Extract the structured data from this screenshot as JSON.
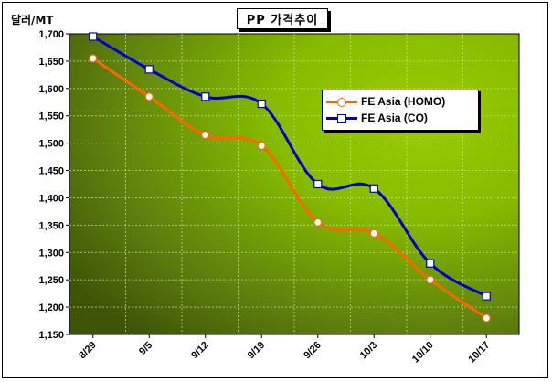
{
  "unit_label": "달러/MT",
  "chart_data": {
    "type": "line",
    "title": "PP 가격추이",
    "categories": [
      "8/29",
      "9/5",
      "9/12",
      "9/19",
      "9/26",
      "10/3",
      "10/10",
      "10/17"
    ],
    "ylim": [
      1150,
      1700
    ],
    "ytick_step": 50,
    "ytick_labels": [
      "1,150",
      "1,200",
      "1,250",
      "1,300",
      "1,350",
      "1,400",
      "1,450",
      "1,500",
      "1,550",
      "1,600",
      "1,650",
      "1,700"
    ],
    "legend_position": "upper-right",
    "grid": true,
    "series": [
      {
        "name": "FE Asia (HOMO)",
        "color": "#ff6600",
        "marker": "circle",
        "values": [
          1655,
          1585,
          1515,
          1495,
          1355,
          1335,
          1250,
          1180
        ]
      },
      {
        "name": "FE Asia (CO)",
        "color": "#0000cc",
        "marker": "square",
        "values": [
          1695,
          1635,
          1585,
          1572,
          1425,
          1417,
          1280,
          1220
        ]
      }
    ]
  }
}
